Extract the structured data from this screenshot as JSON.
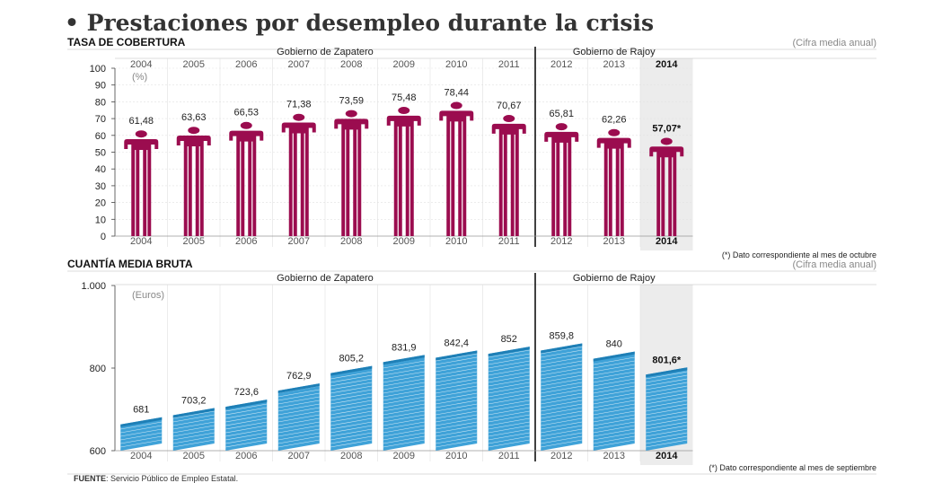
{
  "title": "• Prestaciones por desempleo durante la crisis",
  "source": {
    "label": "FUENTE",
    "text": ": Servicio Público de Empleo Estatal."
  },
  "colors": {
    "coverage": "#9b0c4f",
    "amount": "#3fa2d8",
    "highlight_bg": "#ececec"
  },
  "chart_data": [
    {
      "type": "bar",
      "section_label": "TASA DE COBERTURA",
      "note": "(Cifra media anual)",
      "unit_label": "(%)",
      "footnote": "(*) Dato correspondiente al mes de octubre",
      "categories": [
        "2004",
        "2005",
        "2006",
        "2007",
        "2008",
        "2009",
        "2010",
        "2011",
        "2012",
        "2013",
        "2014"
      ],
      "values": [
        61.48,
        63.63,
        66.53,
        71.38,
        73.59,
        75.48,
        78.44,
        70.67,
        65.81,
        62.26,
        57.07
      ],
      "value_labels": [
        "61,48",
        "63,63",
        "66,53",
        "71,38",
        "73,59",
        "75,48",
        "78,44",
        "70,67",
        "65,81",
        "62,26",
        "57,07*"
      ],
      "ylim": [
        0,
        100
      ],
      "yticks": [
        "0",
        "10",
        "20",
        "30",
        "40",
        "50",
        "60",
        "70",
        "80",
        "90",
        "100"
      ],
      "groups": [
        {
          "label": "Gobierno de Zapatero",
          "from": 0,
          "to": 7
        },
        {
          "label": "Gobierno de Rajoy",
          "from": 8,
          "to": 10
        }
      ],
      "highlight_index": 10,
      "mark_icon": "person-icon"
    },
    {
      "type": "bar",
      "section_label": "CUANTÍA MEDIA BRUTA",
      "note": "(Cifra media anual)",
      "unit_label": "(Euros)",
      "footnote": "(*) Dato correspondiente al mes de septiembre",
      "categories": [
        "2004",
        "2005",
        "2006",
        "2007",
        "2008",
        "2009",
        "2010",
        "2011",
        "2012",
        "2013",
        "2014"
      ],
      "values": [
        681,
        703.2,
        723.6,
        762.9,
        805.2,
        831.9,
        842.4,
        852,
        859.8,
        840,
        801.6
      ],
      "value_labels": [
        "681",
        "703,2",
        "723,6",
        "762,9",
        "805,2",
        "831,9",
        "842,4",
        "852",
        "859,8",
        "840",
        "801,6*"
      ],
      "ylim": [
        600,
        1000
      ],
      "yticks": [
        "600",
        "800",
        "1.000"
      ],
      "ytick_values": [
        600,
        800,
        1000
      ],
      "groups": [
        {
          "label": "Gobierno de Zapatero",
          "from": 0,
          "to": 7
        },
        {
          "label": "Gobierno de Rajoy",
          "from": 8,
          "to": 10
        }
      ],
      "highlight_index": 10,
      "mark_icon": "banknote-stack-icon"
    }
  ]
}
